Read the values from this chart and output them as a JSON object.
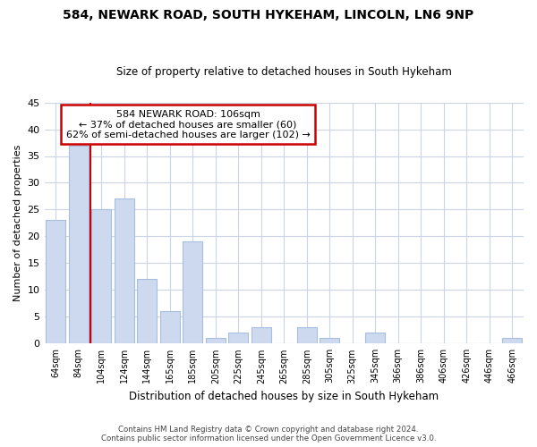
{
  "title": "584, NEWARK ROAD, SOUTH HYKEHAM, LINCOLN, LN6 9NP",
  "subtitle": "Size of property relative to detached houses in South Hykeham",
  "xlabel": "Distribution of detached houses by size in South Hykeham",
  "ylabel": "Number of detached properties",
  "bar_labels": [
    "64sqm",
    "84sqm",
    "104sqm",
    "124sqm",
    "144sqm",
    "165sqm",
    "185sqm",
    "205sqm",
    "225sqm",
    "245sqm",
    "265sqm",
    "285sqm",
    "305sqm",
    "325sqm",
    "345sqm",
    "366sqm",
    "386sqm",
    "406sqm",
    "426sqm",
    "446sqm",
    "466sqm"
  ],
  "bar_values": [
    23,
    37,
    25,
    27,
    12,
    6,
    19,
    1,
    2,
    3,
    0,
    3,
    1,
    0,
    2,
    0,
    0,
    0,
    0,
    0,
    1
  ],
  "bar_color": "#ccd9ee",
  "bar_edge_color": "#a8bee0",
  "vline_x": 1.5,
  "vline_color": "#cc0000",
  "ylim": [
    0,
    45
  ],
  "yticks": [
    0,
    5,
    10,
    15,
    20,
    25,
    30,
    35,
    40,
    45
  ],
  "annotation_title": "584 NEWARK ROAD: 106sqm",
  "annotation_line1": "← 37% of detached houses are smaller (60)",
  "annotation_line2": "62% of semi-detached houses are larger (102) →",
  "annotation_box_color": "#ffffff",
  "annotation_box_edge": "#cc0000",
  "footer1": "Contains HM Land Registry data © Crown copyright and database right 2024.",
  "footer2": "Contains public sector information licensed under the Open Government Licence v3.0.",
  "bg_color": "#ffffff",
  "grid_color": "#ccd5e8"
}
